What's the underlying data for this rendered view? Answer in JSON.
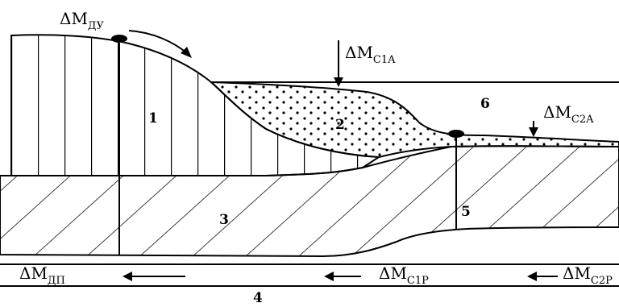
{
  "regions": {
    "r1": "1",
    "r2": "2",
    "r3": "3",
    "r4": "4",
    "r5": "5",
    "r6": "6"
  },
  "flows": {
    "dm_du": {
      "base": "ΔM",
      "sub": "ДУ"
    },
    "dm_c1a": {
      "base": "ΔM",
      "sub": "C1A"
    },
    "dm_c2a": {
      "base": "ΔM",
      "sub": "C2A"
    },
    "dm_dp": {
      "base": "ΔM",
      "sub": "ДП"
    },
    "dm_c1p": {
      "base": "ΔM",
      "sub": "C1P"
    },
    "dm_c2p": {
      "base": "ΔM",
      "sub": "C2P"
    }
  }
}
